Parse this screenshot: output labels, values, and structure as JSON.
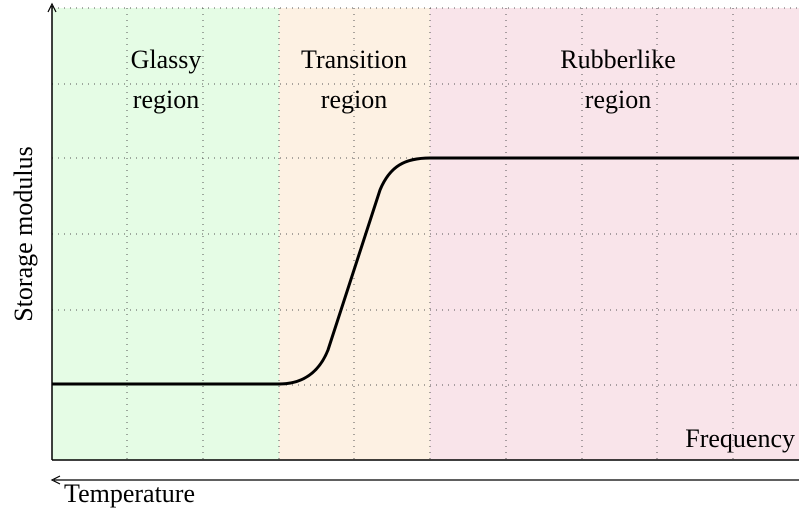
{
  "regions": [
    {
      "lines": [
        "Glassy",
        "region"
      ]
    },
    {
      "lines": [
        "Transition",
        "region"
      ]
    },
    {
      "lines": [
        "Rubberlike",
        "region"
      ]
    }
  ],
  "y_axis_label": "Storage modulus",
  "x_axis_label": "Frequency",
  "lower_axis_label": "Temperature"
}
